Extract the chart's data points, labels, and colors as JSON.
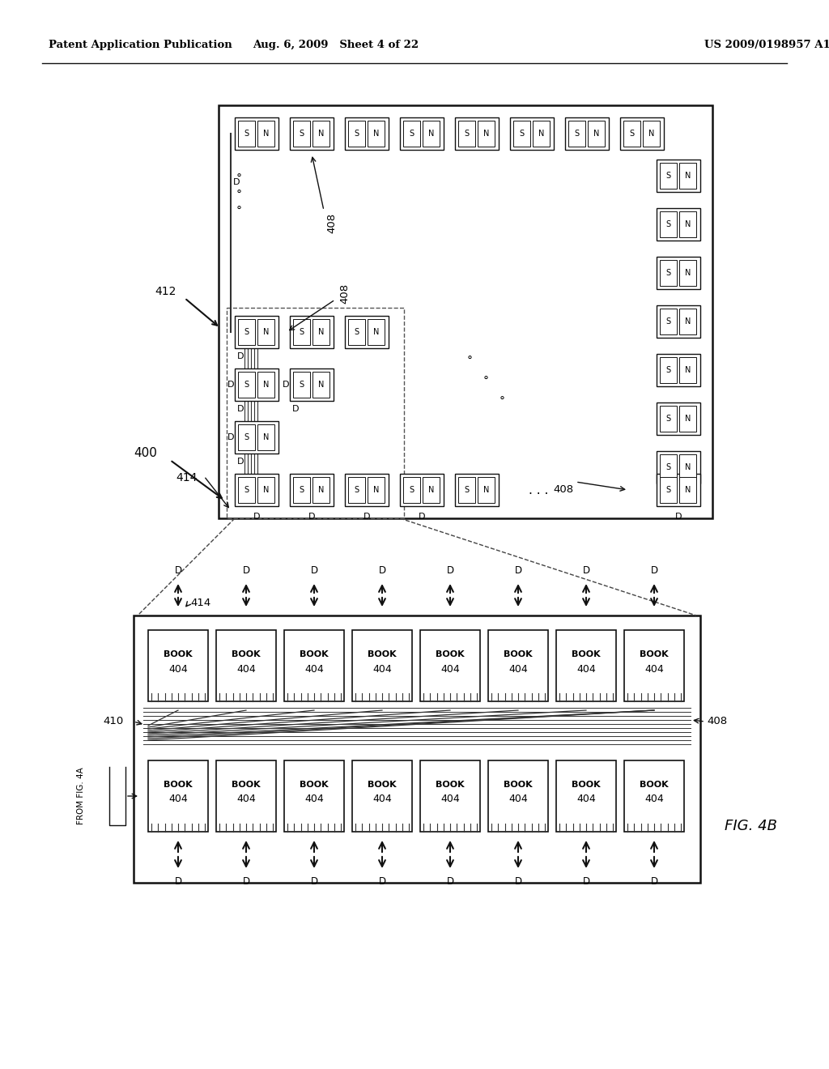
{
  "header_left": "Patent Application Publication",
  "header_mid": "Aug. 6, 2009   Sheet 4 of 22",
  "header_right": "US 2009/0198957 A1",
  "fig_label": "FIG. 4B",
  "bg": "#ffffff",
  "label_400": "400",
  "label_408": "408",
  "label_410": "410",
  "label_412": "412",
  "label_414": "414",
  "D_label": "D",
  "from_fig": "FROM FIG. 4A",
  "book_text": "BOOK",
  "num_404": "404"
}
